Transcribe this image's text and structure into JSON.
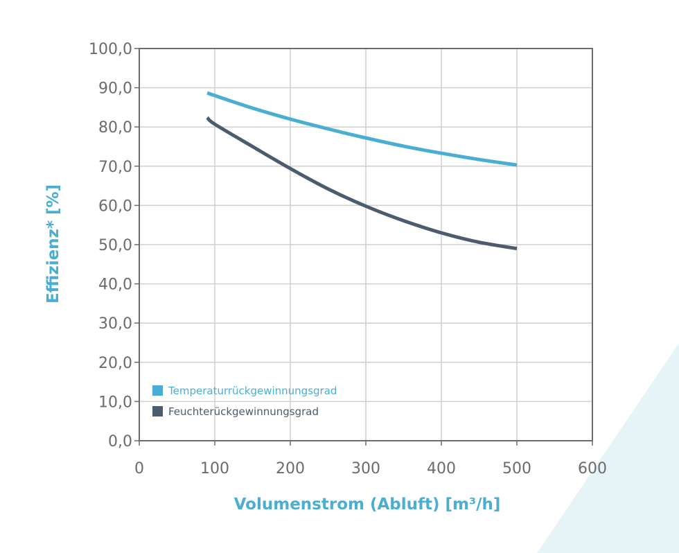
{
  "chart_data": {
    "type": "line",
    "title": "",
    "xlabel": "Volumenstrom (Abluft) [m³/h]",
    "ylabel": "Effizienz* [%]",
    "xlim": [
      0,
      600
    ],
    "ylim": [
      0,
      100
    ],
    "x_ticks": [
      "0",
      "100",
      "200",
      "300",
      "400",
      "500",
      "600"
    ],
    "y_ticks": [
      "0,0",
      "10,0",
      "20,0",
      "30,0",
      "40,0",
      "50,0",
      "60,0",
      "70,0",
      "80,0",
      "90,0",
      "100,0"
    ],
    "grid": true,
    "legend_position": "bottom-left",
    "series": [
      {
        "name": "Temperaturrückgewinnungsgrad",
        "color": "#4aaed3",
        "x": [
          90,
          100,
          150,
          200,
          250,
          300,
          350,
          400,
          450,
          500
        ],
        "values": [
          88.7,
          88.0,
          84.8,
          82.0,
          79.5,
          77.2,
          75.1,
          73.3,
          71.7,
          70.3
        ]
      },
      {
        "name": "Feuchterückgewinnungsgrad",
        "color": "#4d5b6e",
        "x": [
          90,
          100,
          150,
          200,
          250,
          300,
          350,
          400,
          450,
          500
        ],
        "values": [
          82.4,
          80.7,
          75.0,
          69.4,
          64.2,
          59.8,
          56.1,
          53.0,
          50.6,
          49.0
        ]
      }
    ]
  },
  "colors": {
    "grid": "#cfcfcf",
    "axis": "#6b6b6b",
    "accent": "#4aaed3",
    "decoration": "#e6f3f7"
  }
}
